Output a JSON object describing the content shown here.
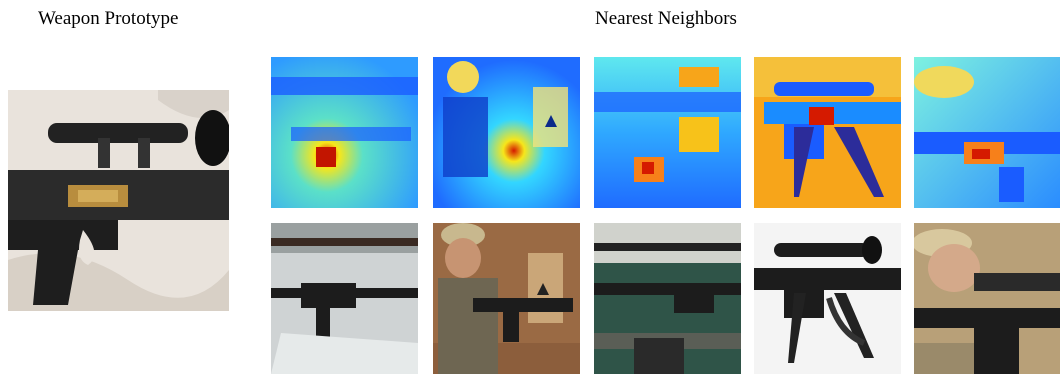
{
  "prototype_title": "Weapon Prototype",
  "neighbors_title": "Nearest Neighbors",
  "colors": {
    "heat_cold": "#1a5cff",
    "heat_mid": "#33d6ff",
    "heat_warm": "#f7e61a",
    "heat_hot": "#d51a00",
    "rifle_black": "#1c1c1c"
  }
}
